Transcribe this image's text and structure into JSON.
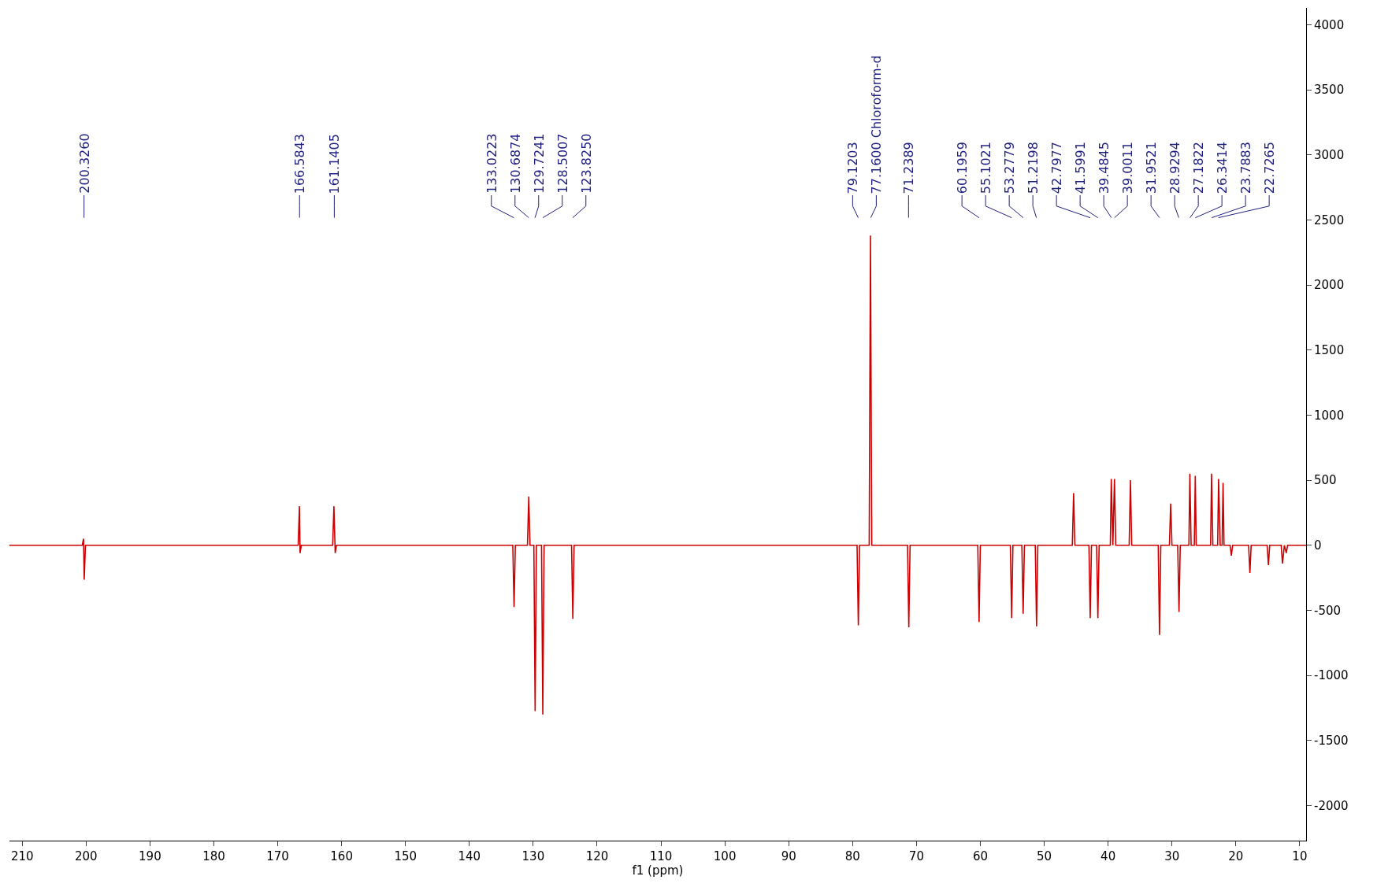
{
  "chart_data": {
    "type": "line",
    "xlabel": "f1 (ppm)",
    "x": [
      212,
      200.6,
      200.4,
      200.3,
      200.1,
      166.8,
      166.6,
      166.5,
      166.3,
      161.4,
      161.2,
      161.0,
      160.8,
      133.2,
      133.0,
      132.8,
      130.9,
      130.7,
      130.5,
      129.9,
      129.7,
      129.5,
      128.7,
      128.5,
      128.3,
      124.0,
      123.8,
      123.6,
      79.3,
      79.1,
      78.9,
      77.4,
      77.2,
      77.0,
      71.4,
      71.2,
      71.0,
      60.4,
      60.2,
      60.0,
      55.3,
      55.1,
      54.9,
      53.5,
      53.3,
      53.1,
      51.4,
      51.2,
      51.0,
      45.6,
      45.4,
      45.2,
      43.0,
      42.8,
      42.6,
      41.8,
      41.6,
      41.4,
      39.65,
      39.5,
      39.25,
      39.0,
      38.8,
      36.7,
      36.5,
      36.3,
      32.15,
      31.95,
      31.75,
      30.4,
      30.2,
      30.0,
      29.1,
      28.9,
      28.7,
      27.35,
      27.2,
      27.0,
      26.5,
      26.35,
      26.2,
      23.95,
      23.8,
      23.6,
      22.85,
      22.7,
      22.45,
      22.15,
      22.0,
      21.85,
      20.9,
      20.7,
      20.5,
      18.0,
      17.8,
      17.6,
      15.1,
      14.9,
      14.7,
      12.9,
      12.7,
      12.4,
      12.1,
      11.9,
      9
    ],
    "series": [
      {
        "color": "#cc0000",
        "values": [
          0,
          0,
          50,
          -265,
          0,
          0,
          300,
          -60,
          0,
          0,
          300,
          -60,
          0,
          0,
          -475,
          0,
          0,
          375,
          0,
          0,
          -1275,
          0,
          0,
          -1300,
          0,
          0,
          -565,
          0,
          0,
          -615,
          0,
          0,
          2380,
          0,
          0,
          -630,
          0,
          0,
          -590,
          0,
          0,
          -560,
          0,
          0,
          -527,
          0,
          0,
          -623,
          0,
          0,
          400,
          0,
          0,
          -560,
          0,
          0,
          -560,
          0,
          0,
          510,
          0,
          510,
          0,
          0,
          500,
          0,
          0,
          -690,
          0,
          0,
          320,
          0,
          0,
          -513,
          0,
          0,
          550,
          0,
          0,
          533,
          0,
          0,
          550,
          0,
          0,
          510,
          0,
          0,
          480,
          0,
          0,
          -80,
          0,
          0,
          -213,
          0,
          0,
          -153,
          0,
          0,
          -140,
          0,
          -60,
          0,
          0
        ]
      }
    ],
    "xlim": [
      212,
      9
    ],
    "xticks": [
      210,
      200,
      190,
      180,
      170,
      160,
      150,
      140,
      130,
      120,
      110,
      100,
      90,
      80,
      70,
      60,
      50,
      40,
      30,
      20,
      10
    ],
    "ylim": [
      -2270,
      4130
    ],
    "yticks": [
      -2000,
      -1500,
      -1000,
      -500,
      0,
      500,
      1000,
      1500,
      2000,
      2500,
      3000,
      3500,
      4000
    ],
    "annotations": [
      {
        "text": "200.3260",
        "x": 200.326
      },
      {
        "text": "166.5843",
        "x": 166.5843
      },
      {
        "text": "161.1405",
        "x": 161.1405
      },
      {
        "text": "133.0223",
        "x": 133.0223
      },
      {
        "text": "130.6874",
        "x": 130.6874
      },
      {
        "text": "129.7241",
        "x": 129.7241
      },
      {
        "text": "128.5007",
        "x": 128.5007
      },
      {
        "text": "123.8250",
        "x": 123.825
      },
      {
        "text": "79.1203",
        "x": 79.1203
      },
      {
        "text": "77.1600 Chloroform-d",
        "x": 77.16
      },
      {
        "text": "71.2389",
        "x": 71.2389
      },
      {
        "text": "60.1959",
        "x": 60.1959
      },
      {
        "text": "55.1021",
        "x": 55.1021
      },
      {
        "text": "53.2779",
        "x": 53.2779
      },
      {
        "text": "51.2198",
        "x": 51.2198
      },
      {
        "text": "42.7977",
        "x": 42.7977
      },
      {
        "text": "41.5991",
        "x": 41.5991
      },
      {
        "text": "39.4845",
        "x": 39.4845
      },
      {
        "text": "39.0011",
        "x": 39.0011
      },
      {
        "text": "31.9521",
        "x": 31.9521
      },
      {
        "text": "28.9294",
        "x": 28.9294
      },
      {
        "text": "27.1822",
        "x": 27.1822
      },
      {
        "text": "26.3414",
        "x": 26.3414
      },
      {
        "text": "23.7883",
        "x": 23.7883
      },
      {
        "text": "22.7265",
        "x": 22.7265
      }
    ]
  }
}
